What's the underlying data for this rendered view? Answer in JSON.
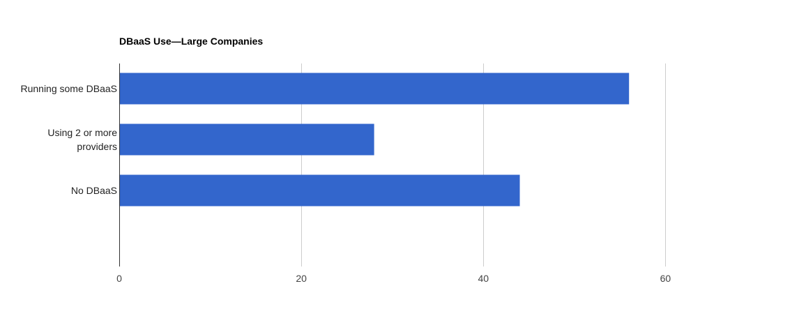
{
  "chart_data": {
    "type": "bar",
    "orientation": "horizontal",
    "title": "DBaaS Use—Large Companies",
    "categories": [
      "Running some DBaaS",
      "Using 2 or more providers",
      "No DBaaS"
    ],
    "values": [
      56,
      28,
      44
    ],
    "xlim": [
      0,
      70
    ],
    "xticks": [
      0,
      20,
      40,
      60
    ],
    "grid": true,
    "bar_color": "#3366cc"
  }
}
